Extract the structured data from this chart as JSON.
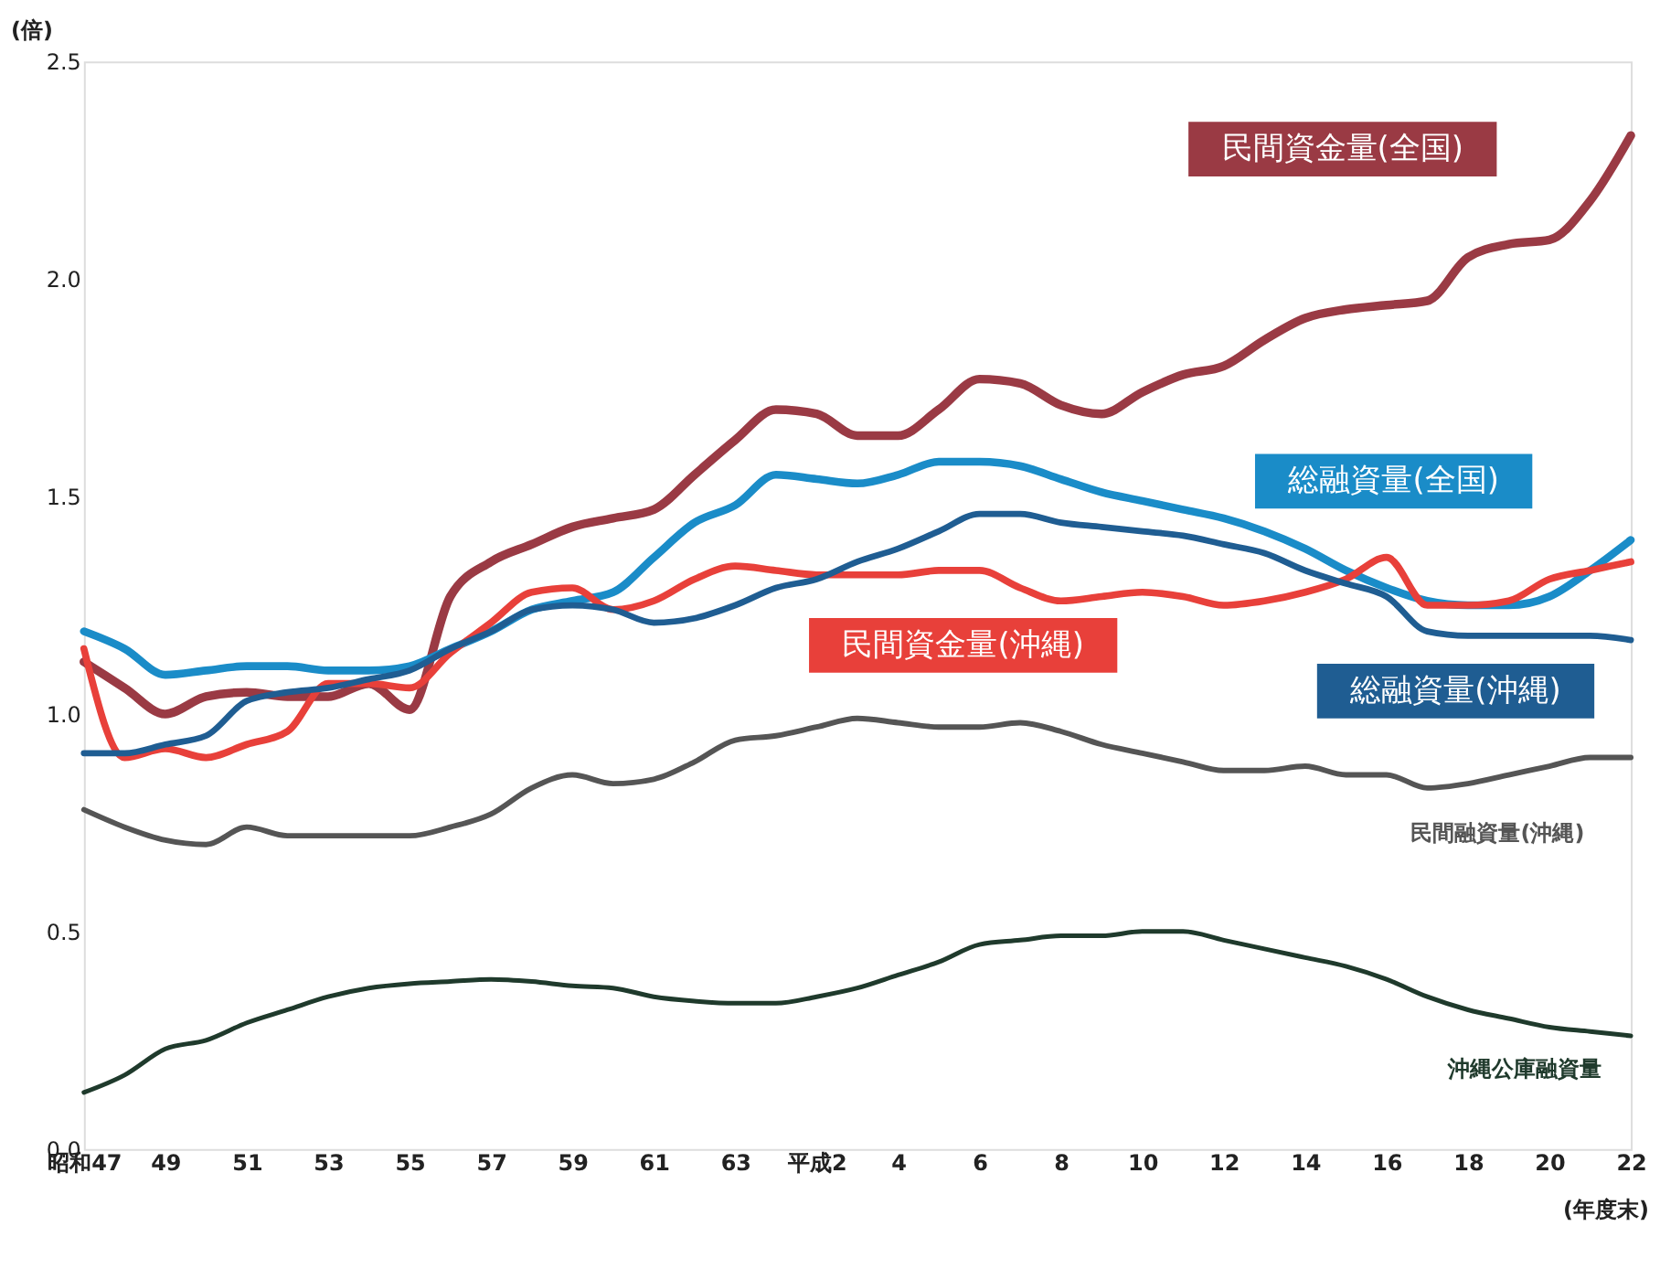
{
  "chart_data": {
    "type": "line",
    "ylabel": "(倍)",
    "xlabel": "(年度末)",
    "grid": false,
    "line_style": "solid",
    "marker": "none",
    "categories": [
      "昭和47",
      null,
      "49",
      null,
      "51",
      null,
      "53",
      null,
      "55",
      null,
      "57",
      null,
      "59",
      null,
      "61",
      null,
      "63",
      null,
      "平成2",
      null,
      "4",
      null,
      "6",
      null,
      "8",
      null,
      "10",
      null,
      "12",
      null,
      "14",
      null,
      "16",
      null,
      "18",
      null,
      "20",
      null,
      "22"
    ],
    "ylim": [
      0,
      2.5
    ],
    "yticks": [
      {
        "value": 0,
        "label": "0.0"
      },
      {
        "value": 0.5,
        "label": "0.5"
      },
      {
        "value": 1,
        "label": "1.0"
      },
      {
        "value": 1.5,
        "label": "1.5"
      },
      {
        "value": 2,
        "label": "2.0"
      },
      {
        "value": 2.5,
        "label": "2.5"
      }
    ],
    "series": [
      {
        "name": "民間資金量(全国)",
        "color": "#9a3a44",
        "values": [
          1.12,
          1.06,
          1.0,
          1.04,
          1.05,
          1.04,
          1.04,
          1.07,
          1.01,
          1.27,
          1.35,
          1.39,
          1.43,
          1.45,
          1.47,
          1.55,
          1.63,
          1.7,
          1.69,
          1.64,
          1.64,
          1.7,
          1.77,
          1.76,
          1.71,
          1.69,
          1.74,
          1.78,
          1.8,
          1.86,
          1.91,
          1.93,
          1.94,
          1.95,
          2.05,
          2.08,
          2.09,
          2.18,
          2.33
        ]
      },
      {
        "name": "総融資量(全国)",
        "color": "#1a8cc8",
        "values": [
          1.19,
          1.15,
          1.09,
          1.1,
          1.11,
          1.11,
          1.1,
          1.1,
          1.11,
          1.15,
          1.19,
          1.24,
          1.26,
          1.28,
          1.36,
          1.44,
          1.48,
          1.55,
          1.54,
          1.53,
          1.55,
          1.58,
          1.58,
          1.57,
          1.54,
          1.51,
          1.49,
          1.47,
          1.45,
          1.42,
          1.38,
          1.33,
          1.29,
          1.26,
          1.25,
          1.25,
          1.27,
          1.33,
          1.4
        ]
      },
      {
        "name": "民間資金量(沖縄)",
        "color": "#e8403a",
        "values": [
          1.15,
          0.9,
          0.92,
          0.9,
          0.93,
          0.96,
          1.07,
          1.07,
          1.06,
          1.14,
          1.21,
          1.28,
          1.29,
          1.24,
          1.26,
          1.31,
          1.34,
          1.33,
          1.32,
          1.32,
          1.32,
          1.33,
          1.33,
          1.29,
          1.26,
          1.27,
          1.28,
          1.27,
          1.25,
          1.26,
          1.28,
          1.31,
          1.36,
          1.25,
          1.25,
          1.26,
          1.31,
          1.33,
          1.35
        ]
      },
      {
        "name": "総融資量(沖縄)",
        "color": "#1f5d92",
        "values": [
          0.91,
          0.91,
          0.93,
          0.95,
          1.03,
          1.05,
          1.06,
          1.08,
          1.1,
          1.15,
          1.19,
          1.24,
          1.25,
          1.24,
          1.21,
          1.22,
          1.25,
          1.29,
          1.31,
          1.35,
          1.38,
          1.42,
          1.46,
          1.46,
          1.44,
          1.43,
          1.42,
          1.41,
          1.39,
          1.37,
          1.33,
          1.3,
          1.27,
          1.19,
          1.18,
          1.18,
          1.18,
          1.18,
          1.17
        ]
      },
      {
        "name": "民間融資量(沖縄)",
        "color": "#555555",
        "values": [
          0.78,
          0.74,
          0.71,
          0.7,
          0.74,
          0.72,
          0.72,
          0.72,
          0.72,
          0.74,
          0.77,
          0.83,
          0.86,
          0.84,
          0.85,
          0.89,
          0.94,
          0.95,
          0.97,
          0.99,
          0.98,
          0.97,
          0.97,
          0.98,
          0.96,
          0.93,
          0.91,
          0.89,
          0.87,
          0.87,
          0.88,
          0.86,
          0.86,
          0.83,
          0.84,
          0.86,
          0.88,
          0.9,
          0.9
        ]
      },
      {
        "name": "沖縄公庫融資量",
        "color": "#1f3a2c",
        "values": [
          0.13,
          0.17,
          0.23,
          0.25,
          0.29,
          0.32,
          0.35,
          0.37,
          0.38,
          0.385,
          0.39,
          0.385,
          0.375,
          0.37,
          0.35,
          0.34,
          0.335,
          0.335,
          0.35,
          0.37,
          0.4,
          0.43,
          0.47,
          0.48,
          0.49,
          0.49,
          0.5,
          0.5,
          0.48,
          0.46,
          0.44,
          0.42,
          0.39,
          0.35,
          0.32,
          0.3,
          0.28,
          0.27,
          0.26
        ]
      }
    ]
  }
}
